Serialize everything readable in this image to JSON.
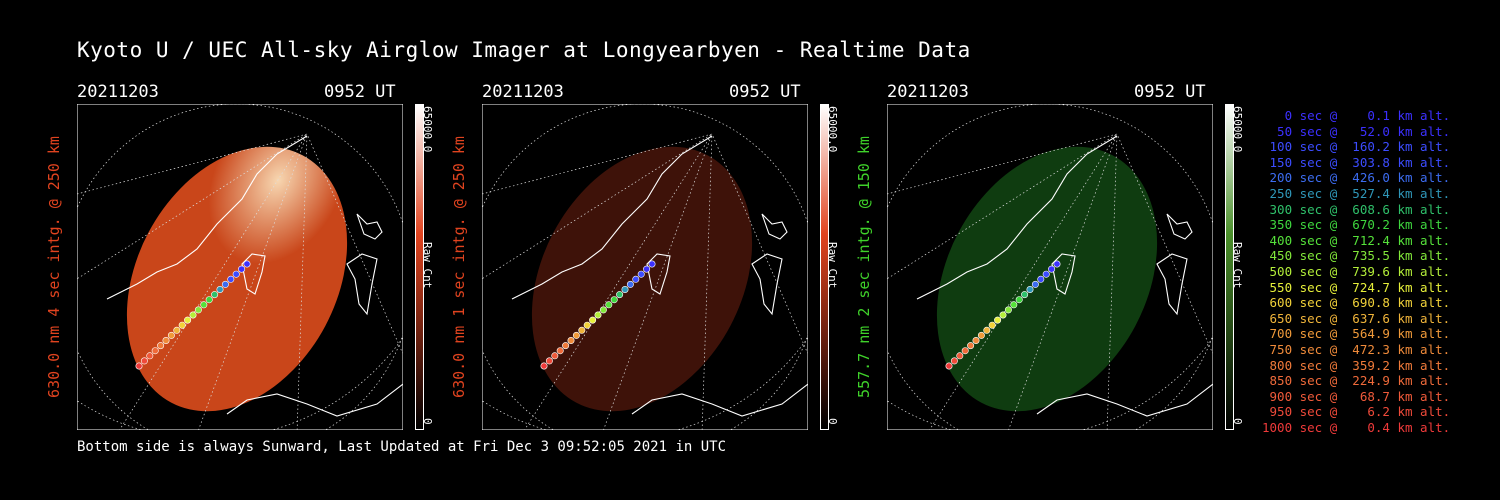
{
  "title": "Kyoto U / UEC All-sky Airglow Imager at Longyearbyen - Realtime Data",
  "footer": "Bottom side is always Sunward, Last Updated at Fri Dec  3 09:52:05 2021 in UTC",
  "panels": [
    {
      "date": "20211203",
      "time": "0952 UT",
      "ylabel": "630.0 nm 4 sec intg. @ 250 km",
      "label_color": "#e0431f",
      "cbar_max": "65000.0",
      "cbar_unit": "Raw Cnt",
      "cbar_min": "0",
      "cbar_color": "#e0431f",
      "glow": "bright",
      "disk_color": "#c9461a"
    },
    {
      "date": "20211203",
      "time": "0952 UT",
      "ylabel": "630.0 nm 1 sec intg. @ 250 km",
      "label_color": "#e0431f",
      "cbar_max": "65000.0",
      "cbar_unit": "Raw Cnt",
      "cbar_min": "0",
      "cbar_color": "#e0431f",
      "glow": "dim",
      "disk_color": "#3e1209"
    },
    {
      "date": "20211203",
      "time": "0952 UT",
      "ylabel": "557.7 nm 2 sec intg. @ 150 km",
      "label_color": "#3fd22a",
      "cbar_max": "65000.0",
      "cbar_unit": "Raw Cnt",
      "cbar_min": "0",
      "cbar_color": "#4a8f2a",
      "glow": "dim",
      "disk_color": "#0f3c10"
    }
  ],
  "legend": [
    {
      "text": "   0 sec @    0.1 km alt.",
      "color": "#3c30ff"
    },
    {
      "text": "  50 sec @   52.0 km alt.",
      "color": "#3c30ff"
    },
    {
      "text": " 100 sec @  160.2 km alt.",
      "color": "#3c4cff"
    },
    {
      "text": " 150 sec @  303.8 km alt.",
      "color": "#3c4cff"
    },
    {
      "text": " 200 sec @  426.0 km alt.",
      "color": "#3c6cf0"
    },
    {
      "text": " 250 sec @  527.4 km alt.",
      "color": "#2f97b9"
    },
    {
      "text": " 300 sec @  608.6 km alt.",
      "color": "#2fc06a"
    },
    {
      "text": " 350 sec @  670.2 km alt.",
      "color": "#3ed63e"
    },
    {
      "text": " 400 sec @  712.4 km alt.",
      "color": "#55e13a"
    },
    {
      "text": " 450 sec @  735.5 km alt.",
      "color": "#82e83a"
    },
    {
      "text": " 500 sec @  739.6 km alt.",
      "color": "#b4ef3a"
    },
    {
      "text": " 550 sec @  724.7 km alt.",
      "color": "#e6ef3a"
    },
    {
      "text": " 600 sec @  690.8 km alt.",
      "color": "#f2d23a"
    },
    {
      "text": " 650 sec @  637.6 km alt.",
      "color": "#f0b43a"
    },
    {
      "text": " 700 sec @  564.9 km alt.",
      "color": "#f09a3a"
    },
    {
      "text": " 750 sec @  472.3 km alt.",
      "color": "#ef8a3a"
    },
    {
      "text": " 800 sec @  359.2 km alt.",
      "color": "#ef7a3a"
    },
    {
      "text": " 850 sec @  224.9 km alt.",
      "color": "#ef6a3a"
    },
    {
      "text": " 900 sec @   68.7 km alt.",
      "color": "#ef5a3a"
    },
    {
      "text": " 950 sec @    6.2 km alt.",
      "color": "#ef4a3a"
    },
    {
      "text": "1000 sec @    0.4 km alt.",
      "color": "#ef3a3a"
    }
  ]
}
